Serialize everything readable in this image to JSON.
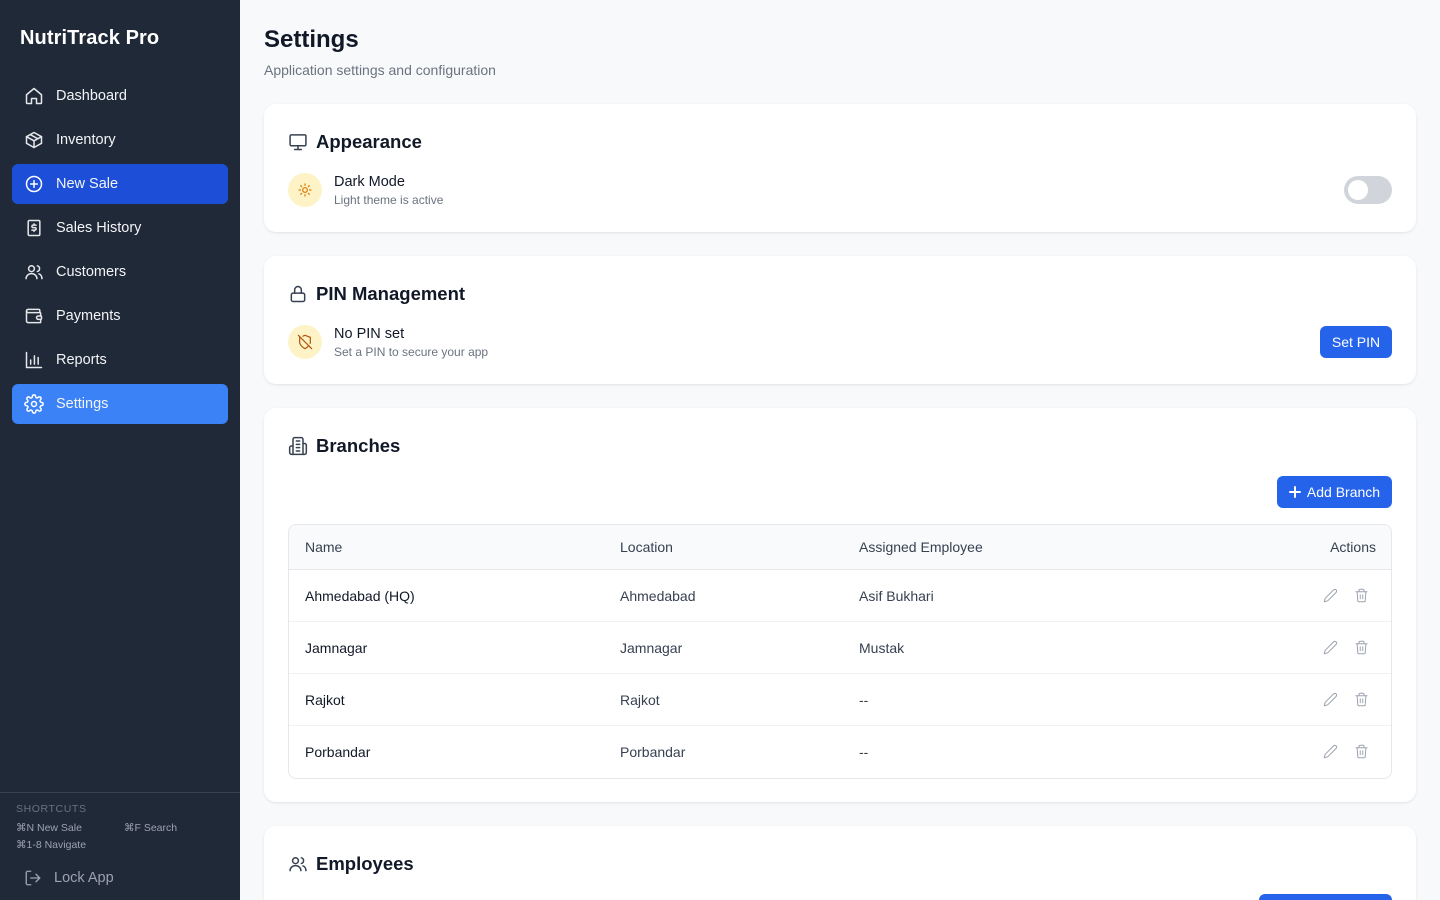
{
  "app": {
    "name": "NutriTrack Pro"
  },
  "sidebar": {
    "items": [
      {
        "label": "Dashboard",
        "icon": "home-icon"
      },
      {
        "label": "Inventory",
        "icon": "package-icon"
      },
      {
        "label": "New Sale",
        "icon": "plus-circle-icon"
      },
      {
        "label": "Sales History",
        "icon": "receipt-icon"
      },
      {
        "label": "Customers",
        "icon": "users-icon"
      },
      {
        "label": "Payments",
        "icon": "wallet-icon"
      },
      {
        "label": "Reports",
        "icon": "bar-chart-icon"
      },
      {
        "label": "Settings",
        "icon": "gear-icon"
      }
    ],
    "shortcuts": {
      "title": "SHORTCUTS",
      "new_sale": "⌘N New Sale",
      "search": "⌘F Search",
      "navigate": "⌘1-8 Navigate"
    },
    "lock_app": "Lock App"
  },
  "page": {
    "title": "Settings",
    "subtitle": "Application settings and configuration"
  },
  "appearance": {
    "title": "Appearance",
    "dark_mode_label": "Dark Mode",
    "dark_mode_status": "Light theme is active",
    "dark_mode_enabled": false
  },
  "pin": {
    "title": "PIN Management",
    "status_label": "No PIN set",
    "status_desc": "Set a PIN to secure your app",
    "button": "Set PIN"
  },
  "branches": {
    "title": "Branches",
    "add_button": "Add Branch",
    "columns": [
      "Name",
      "Location",
      "Assigned Employee",
      "Actions"
    ],
    "rows": [
      {
        "name": "Ahmedabad (HQ)",
        "location": "Ahmedabad",
        "employee": "Asif Bukhari"
      },
      {
        "name": "Jamnagar",
        "location": "Jamnagar",
        "employee": "Mustak"
      },
      {
        "name": "Rajkot",
        "location": "Rajkot",
        "employee": "--"
      },
      {
        "name": "Porbandar",
        "location": "Porbandar",
        "employee": "--"
      }
    ]
  },
  "employees": {
    "title": "Employees"
  },
  "colors": {
    "sidebar_bg": "#1f2937",
    "accent": "#2563eb",
    "active_nav_new_sale": "#1d4ed8",
    "active_nav_settings": "#3b82f6"
  }
}
